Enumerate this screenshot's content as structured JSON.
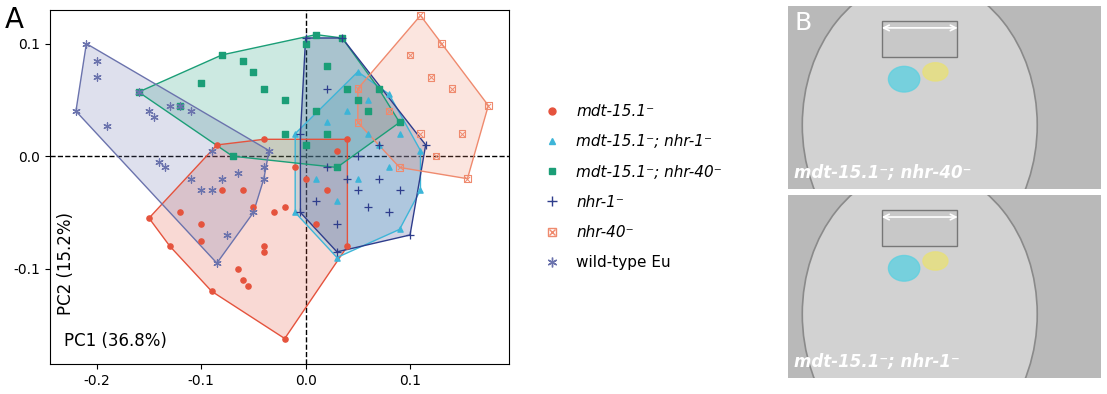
{
  "chart_data": {
    "type": "scatter",
    "panel_label": "A",
    "x_label": "PC1 (36.8%)",
    "y_label": "PC2 (15.2%)",
    "xlim": [
      -0.245,
      0.195
    ],
    "ylim": [
      -0.185,
      0.13
    ],
    "xticks": [
      -0.2,
      -0.1,
      {
        "value": 0,
        "label": "0.0"
      },
      0.1
    ],
    "yticks": [
      -0.1,
      {
        "value": 0,
        "label": "0.0"
      },
      0.1
    ],
    "legend": "right",
    "series": [
      {
        "name": "mdt-15.1⁻",
        "color": "#e5533d",
        "marker": "circle",
        "x": [
          -0.15,
          -0.12,
          -0.13,
          -0.1,
          -0.08,
          -0.085,
          -0.06,
          -0.05,
          -0.04,
          -0.04,
          -0.065,
          -0.06,
          -0.055,
          -0.03,
          -0.02,
          -0.02,
          -0.01,
          0.0,
          0.02,
          0.03,
          0.04,
          0.04,
          -0.04,
          -0.1,
          -0.09,
          0.01
        ],
        "y": [
          -0.055,
          -0.05,
          -0.08,
          -0.06,
          -0.03,
          0.01,
          -0.03,
          -0.045,
          -0.08,
          -0.085,
          -0.1,
          -0.11,
          -0.115,
          -0.05,
          -0.162,
          -0.045,
          -0.01,
          -0.02,
          -0.03,
          0.005,
          0.015,
          -0.08,
          0.015,
          -0.075,
          -0.12,
          -0.06
        ]
      },
      {
        "name": "mdt-15.1⁻; nhr-1⁻",
        "color": "#3db5d8",
        "marker": "triangle",
        "x": [
          -0.01,
          0.05,
          0.08,
          0.11,
          0.11,
          0.09,
          0.03,
          -0.01,
          0.02,
          0.04,
          0.06,
          0.07,
          0.05,
          0.03,
          0.08,
          0.09,
          0.01,
          0.06
        ],
        "y": [
          0.02,
          0.075,
          0.055,
          0.005,
          -0.03,
          -0.065,
          -0.09,
          -0.05,
          0.03,
          0.04,
          0.02,
          0.01,
          -0.02,
          -0.04,
          -0.01,
          0.02,
          -0.02,
          0.05
        ]
      },
      {
        "name": "mdt-15.1⁻; nhr-40⁻",
        "color": "#1b9e77",
        "marker": "square",
        "x": [
          -0.16,
          -0.12,
          -0.1,
          -0.08,
          -0.05,
          -0.06,
          -0.04,
          -0.02,
          0.0,
          0.01,
          0.035,
          0.02,
          0.01,
          0.05,
          0.06,
          0.09,
          0.03,
          -0.07,
          0.0,
          0.02,
          0.04,
          -0.02,
          0.07
        ],
        "y": [
          0.057,
          0.045,
          0.065,
          0.09,
          0.075,
          0.085,
          0.06,
          0.05,
          0.1,
          0.108,
          0.105,
          0.08,
          0.04,
          0.05,
          0.04,
          0.03,
          -0.01,
          0.0,
          0.01,
          0.02,
          0.06,
          0.02,
          0.06
        ]
      },
      {
        "name": "nhr-1⁻",
        "color": "#2e3d8c",
        "marker": "plus",
        "x": [
          0.0,
          0.035,
          0.115,
          0.1,
          0.03,
          -0.005,
          -0.005,
          0.02,
          0.04,
          0.05,
          0.06,
          0.07,
          0.08,
          0.09,
          0.01,
          0.03,
          0.05,
          0.07,
          0.02
        ],
        "y": [
          0.105,
          0.105,
          0.01,
          -0.07,
          -0.085,
          -0.05,
          0.02,
          -0.01,
          -0.02,
          -0.03,
          -0.045,
          -0.02,
          -0.05,
          -0.03,
          -0.04,
          -0.06,
          0.0,
          0.01,
          0.06
        ]
      },
      {
        "name": "nhr-40⁻",
        "color": "#ef8a6e",
        "marker": "boxed_x",
        "x": [
          0.05,
          0.11,
          0.175,
          0.155,
          0.09,
          0.05,
          0.1,
          0.12,
          0.13,
          0.14,
          0.11,
          0.08,
          0.125,
          0.15
        ],
        "y": [
          0.06,
          0.125,
          0.045,
          -0.02,
          -0.01,
          0.03,
          0.09,
          0.07,
          0.1,
          0.06,
          0.02,
          0.04,
          0.0,
          0.02
        ]
      },
      {
        "name": "wild-type Eu",
        "color": "#6b73ad",
        "marker": "asterisk",
        "x": [
          -0.21,
          -0.2,
          -0.22,
          -0.19,
          -0.16,
          -0.15,
          -0.145,
          -0.13,
          -0.12,
          -0.11,
          -0.14,
          -0.135,
          -0.11,
          -0.1,
          -0.09,
          -0.08,
          -0.065,
          -0.04,
          -0.04,
          -0.085,
          -0.075,
          -0.05,
          -0.035,
          -0.09,
          -0.2
        ],
        "y": [
          0.1,
          0.085,
          0.04,
          0.027,
          0.057,
          0.04,
          0.035,
          0.045,
          0.045,
          0.04,
          -0.005,
          -0.01,
          -0.02,
          -0.03,
          -0.03,
          -0.02,
          -0.015,
          -0.02,
          -0.01,
          -0.095,
          -0.07,
          -0.05,
          0.005,
          0.005,
          0.07
        ]
      }
    ]
  },
  "panel_b": {
    "panel_label": "B",
    "images": [
      "mdt-15.1⁻; nhr-40⁻",
      "mdt-15.1⁻; nhr-1⁻"
    ]
  }
}
